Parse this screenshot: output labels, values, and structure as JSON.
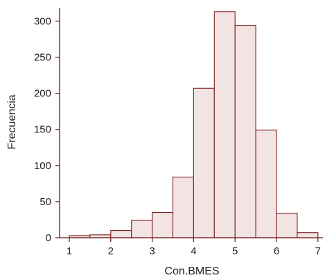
{
  "chart_data": {
    "type": "bar",
    "subtype": "histogram",
    "title": "",
    "xlabel": "Con.BMES",
    "ylabel": "Frecuencia",
    "bin_edges": [
      1.0,
      1.5,
      2.0,
      2.5,
      3.0,
      3.5,
      4.0,
      4.5,
      5.0,
      5.5,
      6.0,
      6.5,
      7.0
    ],
    "values": [
      3,
      4,
      10,
      24,
      35,
      84,
      207,
      313,
      294,
      149,
      34,
      7
    ],
    "xlim": [
      0.9,
      7.1
    ],
    "ylim": [
      0,
      320
    ],
    "xticks": [
      1,
      2,
      3,
      4,
      5,
      6,
      7
    ],
    "yticks": [
      0,
      50,
      100,
      150,
      200,
      250,
      300
    ],
    "grid": false,
    "bar_fill": "#f2e4e2",
    "bar_stroke": "#7a1e1e",
    "axis_color": "#6b1414"
  }
}
